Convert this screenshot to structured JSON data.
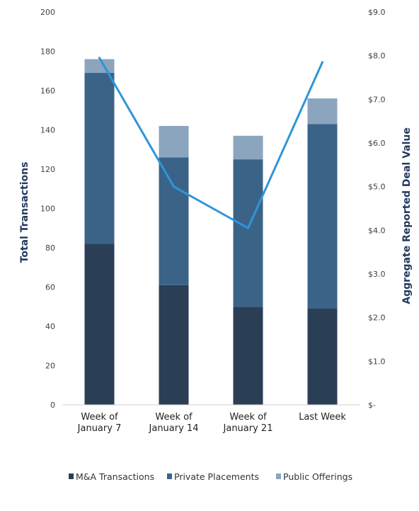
{
  "chart_data": {
    "type": "bar",
    "stacked": true,
    "categories": [
      [
        "Week of",
        "January 7"
      ],
      [
        "Week of",
        "January 14"
      ],
      [
        "Week of",
        "January 21"
      ],
      [
        "Last Week"
      ]
    ],
    "series": [
      {
        "name": "M&A Transactions",
        "values": [
          82,
          61,
          50,
          49
        ],
        "color": "#2a3f56"
      },
      {
        "name": "Private Placements",
        "values": [
          87,
          65,
          75,
          94
        ],
        "color": "#3b6388"
      },
      {
        "name": "Public Offerings",
        "values": [
          7,
          16,
          12,
          13
        ],
        "color": "#8ba5be"
      }
    ],
    "line_series": {
      "name": "Aggregate Reported Deal Value",
      "values": [
        7.95,
        5.0,
        4.05,
        7.85
      ],
      "color": "#2f95d8",
      "axis": "right"
    },
    "ylabel": "Total Transactions",
    "ylim": [
      0,
      200
    ],
    "yticks": [
      0,
      20,
      40,
      60,
      80,
      100,
      120,
      140,
      160,
      180,
      200
    ],
    "y2label": "Aggregate Reported Deal Value",
    "y2lim": [
      0,
      9
    ],
    "y2ticks": [
      "$-",
      "$1.0",
      "$2.0",
      "$3.0",
      "$4.0",
      "$5.0",
      "$6.0",
      "$7.0",
      "$8.0",
      "$9.0"
    ],
    "grid": false,
    "legend": "bottom"
  }
}
